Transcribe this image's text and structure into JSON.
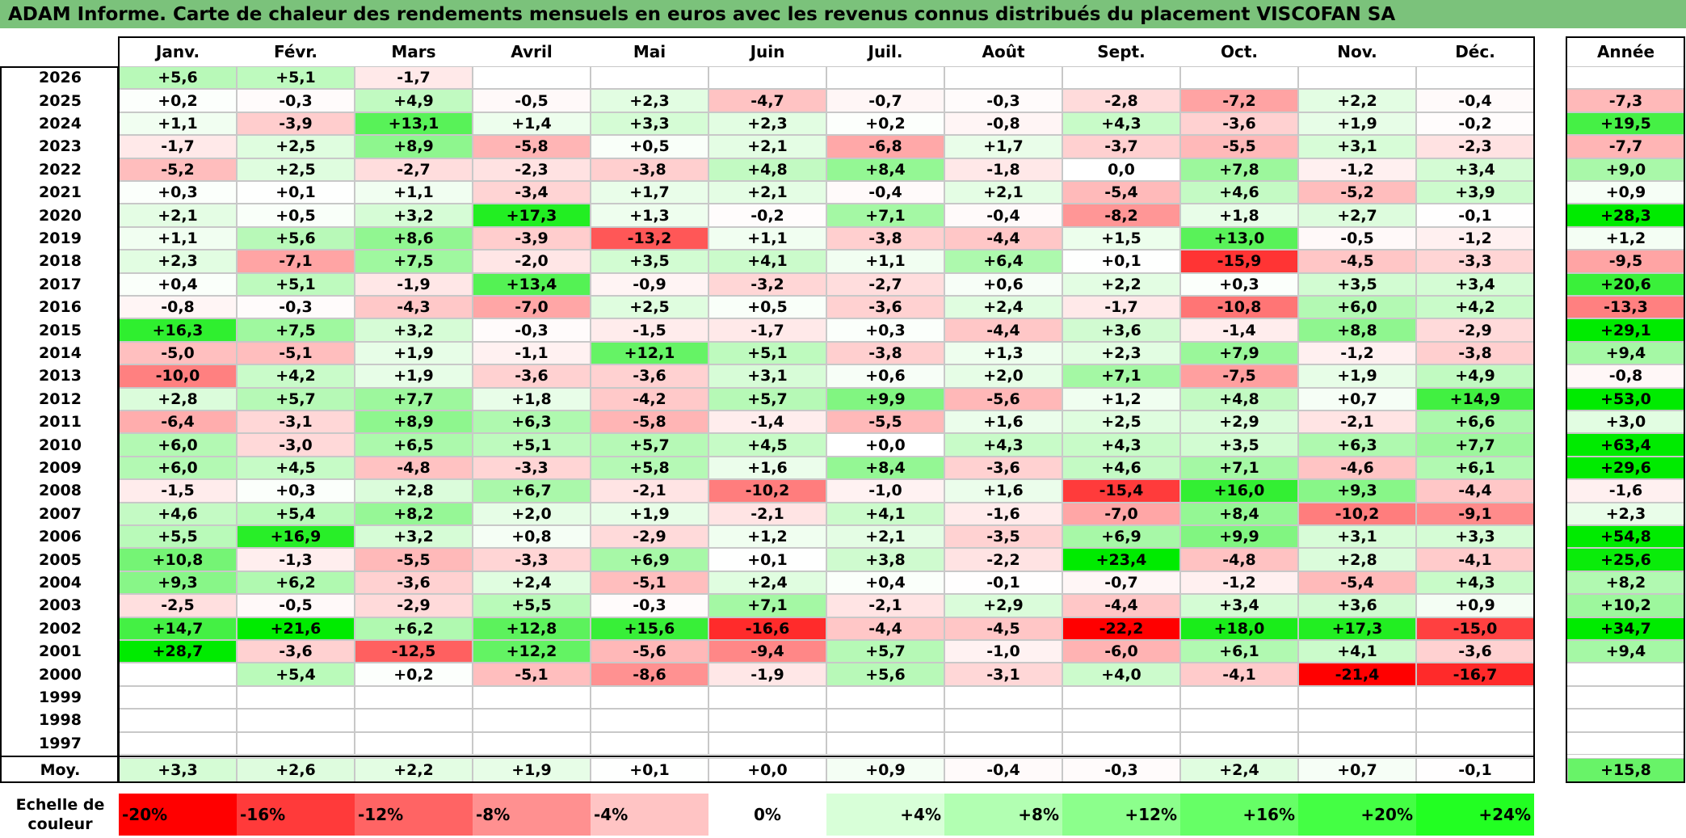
{
  "title": "ADAM Informe. Carte de chaleur des rendements mensuels en euros avec les revenus connus distribués du placement VISCOFAN SA",
  "chart_data": {
    "type": "heatmap",
    "months": [
      "Janv.",
      "Févr.",
      "Mars",
      "Avril",
      "Mai",
      "Juin",
      "Juil.",
      "Août",
      "Sept.",
      "Oct.",
      "Nov.",
      "Déc."
    ],
    "year_header": "Année",
    "rows": [
      {
        "year": "2026",
        "values": [
          "+5,6",
          "+5,1",
          "-1,7",
          "",
          "",
          "",
          "",
          "",
          "",
          "",
          "",
          ""
        ],
        "annual": ""
      },
      {
        "year": "2025",
        "values": [
          "+0,2",
          "-0,3",
          "+4,9",
          "-0,5",
          "+2,3",
          "-4,7",
          "-0,7",
          "-0,3",
          "-2,8",
          "-7,2",
          "+2,2",
          "-0,4"
        ],
        "annual": "-7,3"
      },
      {
        "year": "2024",
        "values": [
          "+1,1",
          "-3,9",
          "+13,1",
          "+1,4",
          "+3,3",
          "+2,3",
          "+0,2",
          "-0,8",
          "+4,3",
          "-3,6",
          "+1,9",
          "-0,2"
        ],
        "annual": "+19,5"
      },
      {
        "year": "2023",
        "values": [
          "-1,7",
          "+2,5",
          "+8,9",
          "-5,8",
          "+0,5",
          "+2,1",
          "-6,8",
          "+1,7",
          "-3,7",
          "-5,5",
          "+3,1",
          "-2,3"
        ],
        "annual": "-7,7"
      },
      {
        "year": "2022",
        "values": [
          "-5,2",
          "+2,5",
          "-2,7",
          "-2,3",
          "-3,8",
          "+4,8",
          "+8,4",
          "-1,8",
          "0,0",
          "+7,8",
          "-1,2",
          "+3,4"
        ],
        "annual": "+9,0"
      },
      {
        "year": "2021",
        "values": [
          "+0,3",
          "+0,1",
          "+1,1",
          "-3,4",
          "+1,7",
          "+2,1",
          "-0,4",
          "+2,1",
          "-5,4",
          "+4,6",
          "-5,2",
          "+3,9"
        ],
        "annual": "+0,9"
      },
      {
        "year": "2020",
        "values": [
          "+2,1",
          "+0,5",
          "+3,2",
          "+17,3",
          "+1,3",
          "-0,2",
          "+7,1",
          "-0,4",
          "-8,2",
          "+1,8",
          "+2,7",
          "-0,1"
        ],
        "annual": "+28,3"
      },
      {
        "year": "2019",
        "values": [
          "+1,1",
          "+5,6",
          "+8,6",
          "-3,9",
          "-13,2",
          "+1,1",
          "-3,8",
          "-4,4",
          "+1,5",
          "+13,0",
          "-0,5",
          "-1,2"
        ],
        "annual": "+1,2"
      },
      {
        "year": "2018",
        "values": [
          "+2,3",
          "-7,1",
          "+7,5",
          "-2,0",
          "+3,5",
          "+4,1",
          "+1,1",
          "+6,4",
          "+0,1",
          "-15,9",
          "-4,5",
          "-3,3"
        ],
        "annual": "-9,5"
      },
      {
        "year": "2017",
        "values": [
          "+0,4",
          "+5,1",
          "-1,9",
          "+13,4",
          "-0,9",
          "-3,2",
          "-2,7",
          "+0,6",
          "+2,2",
          "+0,3",
          "+3,5",
          "+3,4"
        ],
        "annual": "+20,6"
      },
      {
        "year": "2016",
        "values": [
          "-0,8",
          "-0,3",
          "-4,3",
          "-7,0",
          "+2,5",
          "+0,5",
          "-3,6",
          "+2,4",
          "-1,7",
          "-10,8",
          "+6,0",
          "+4,2"
        ],
        "annual": "-13,3"
      },
      {
        "year": "2015",
        "values": [
          "+16,3",
          "+7,5",
          "+3,2",
          "-0,3",
          "-1,5",
          "-1,7",
          "+0,3",
          "-4,4",
          "+3,6",
          "-1,4",
          "+8,8",
          "-2,9"
        ],
        "annual": "+29,1"
      },
      {
        "year": "2014",
        "values": [
          "-5,0",
          "-5,1",
          "+1,9",
          "-1,1",
          "+12,1",
          "+5,1",
          "-3,8",
          "+1,3",
          "+2,3",
          "+7,9",
          "-1,2",
          "-3,8"
        ],
        "annual": "+9,4"
      },
      {
        "year": "2013",
        "values": [
          "-10,0",
          "+4,2",
          "+1,9",
          "-3,6",
          "-3,6",
          "+3,1",
          "+0,6",
          "+2,0",
          "+7,1",
          "-7,5",
          "+1,9",
          "+4,9"
        ],
        "annual": "-0,8"
      },
      {
        "year": "2012",
        "values": [
          "+2,8",
          "+5,7",
          "+7,7",
          "+1,8",
          "-4,2",
          "+5,7",
          "+9,9",
          "-5,6",
          "+1,2",
          "+4,8",
          "+0,7",
          "+14,9"
        ],
        "annual": "+53,0"
      },
      {
        "year": "2011",
        "values": [
          "-6,4",
          "-3,1",
          "+8,9",
          "+6,3",
          "-5,8",
          "-1,4",
          "-5,5",
          "+1,6",
          "+2,5",
          "+2,9",
          "-2,1",
          "+6,6"
        ],
        "annual": "+3,0"
      },
      {
        "year": "2010",
        "values": [
          "+6,0",
          "-3,0",
          "+6,5",
          "+5,1",
          "+5,7",
          "+4,5",
          "+0,0",
          "+4,3",
          "+4,3",
          "+3,5",
          "+6,3",
          "+7,7"
        ],
        "annual": "+63,4"
      },
      {
        "year": "2009",
        "values": [
          "+6,0",
          "+4,5",
          "-4,8",
          "-3,3",
          "+5,8",
          "+1,6",
          "+8,4",
          "-3,6",
          "+4,6",
          "+7,1",
          "-4,6",
          "+6,1"
        ],
        "annual": "+29,6"
      },
      {
        "year": "2008",
        "values": [
          "-1,5",
          "+0,3",
          "+2,8",
          "+6,7",
          "-2,1",
          "-10,2",
          "-1,0",
          "+1,6",
          "-15,4",
          "+16,0",
          "+9,3",
          "-4,4"
        ],
        "annual": "-1,6"
      },
      {
        "year": "2007",
        "values": [
          "+4,6",
          "+5,4",
          "+8,2",
          "+2,0",
          "+1,9",
          "-2,1",
          "+4,1",
          "-1,6",
          "-7,0",
          "+8,4",
          "-10,2",
          "-9,1"
        ],
        "annual": "+2,3"
      },
      {
        "year": "2006",
        "values": [
          "+5,5",
          "+16,9",
          "+3,2",
          "+0,8",
          "-2,9",
          "+1,2",
          "+2,1",
          "-3,5",
          "+6,9",
          "+9,9",
          "+3,1",
          "+3,3"
        ],
        "annual": "+54,8"
      },
      {
        "year": "2005",
        "values": [
          "+10,8",
          "-1,3",
          "-5,5",
          "-3,3",
          "+6,9",
          "+0,1",
          "+3,8",
          "-2,2",
          "+23,4",
          "-4,8",
          "+2,8",
          "-4,1"
        ],
        "annual": "+25,6"
      },
      {
        "year": "2004",
        "values": [
          "+9,3",
          "+6,2",
          "-3,6",
          "+2,4",
          "-5,1",
          "+2,4",
          "+0,4",
          "-0,1",
          "-0,7",
          "-1,2",
          "-5,4",
          "+4,3"
        ],
        "annual": "+8,2"
      },
      {
        "year": "2003",
        "values": [
          "-2,5",
          "-0,5",
          "-2,9",
          "+5,5",
          "-0,3",
          "+7,1",
          "-2,1",
          "+2,9",
          "-4,4",
          "+3,4",
          "+3,6",
          "+0,9"
        ],
        "annual": "+10,2"
      },
      {
        "year": "2002",
        "values": [
          "+14,7",
          "+21,6",
          "+6,2",
          "+12,8",
          "+15,6",
          "-16,6",
          "-4,4",
          "-4,5",
          "-22,2",
          "+18,0",
          "+17,3",
          "-15,0"
        ],
        "annual": "+34,7"
      },
      {
        "year": "2001",
        "values": [
          "+28,7",
          "-3,6",
          "-12,5",
          "+12,2",
          "-5,6",
          "-9,4",
          "+5,7",
          "-1,0",
          "-6,0",
          "+6,1",
          "+4,1",
          "-3,6"
        ],
        "annual": "+9,4"
      },
      {
        "year": "2000",
        "values": [
          "",
          "+5,4",
          "+0,2",
          "-5,1",
          "-8,6",
          "-1,9",
          "+5,6",
          "-3,1",
          "+4,0",
          "-4,1",
          "-21,4",
          "-16,7"
        ],
        "annual": ""
      },
      {
        "year": "1999",
        "values": [
          "",
          "",
          "",
          "",
          "",
          "",
          "",
          "",
          "",
          "",
          "",
          ""
        ],
        "annual": ""
      },
      {
        "year": "1998",
        "values": [
          "",
          "",
          "",
          "",
          "",
          "",
          "",
          "",
          "",
          "",
          "",
          ""
        ],
        "annual": ""
      },
      {
        "year": "1997",
        "values": [
          "",
          "",
          "",
          "",
          "",
          "",
          "",
          "",
          "",
          "",
          "",
          ""
        ],
        "annual": ""
      }
    ],
    "average": {
      "label": "Moy.",
      "values": [
        "+3,3",
        "+2,6",
        "+2,2",
        "+1,9",
        "+0,1",
        "+0,0",
        "+0,9",
        "-0,4",
        "-0,3",
        "+2,4",
        "+0,7",
        "-0,1"
      ],
      "annual": "+15,8"
    },
    "color_scale": {
      "label": "Echelle de couleur",
      "items": [
        "-20%",
        "-16%",
        "-12%",
        "-8%",
        "-4%",
        "0%",
        "+4%",
        "+8%",
        "+12%",
        "+16%",
        "+20%",
        "+24%"
      ],
      "colors": [
        "#ff0000",
        "#ff3a3a",
        "#ff6464",
        "#ff9090",
        "#ffc4c4",
        "#ffffff",
        "#d8ffd8",
        "#b2ffb2",
        "#8cff8c",
        "#66ff66",
        "#44ff44",
        "#22ff22"
      ]
    },
    "colors": {
      "negative": "#ff0000",
      "positive": "#00ee00",
      "neutral": "#ffffff"
    }
  }
}
